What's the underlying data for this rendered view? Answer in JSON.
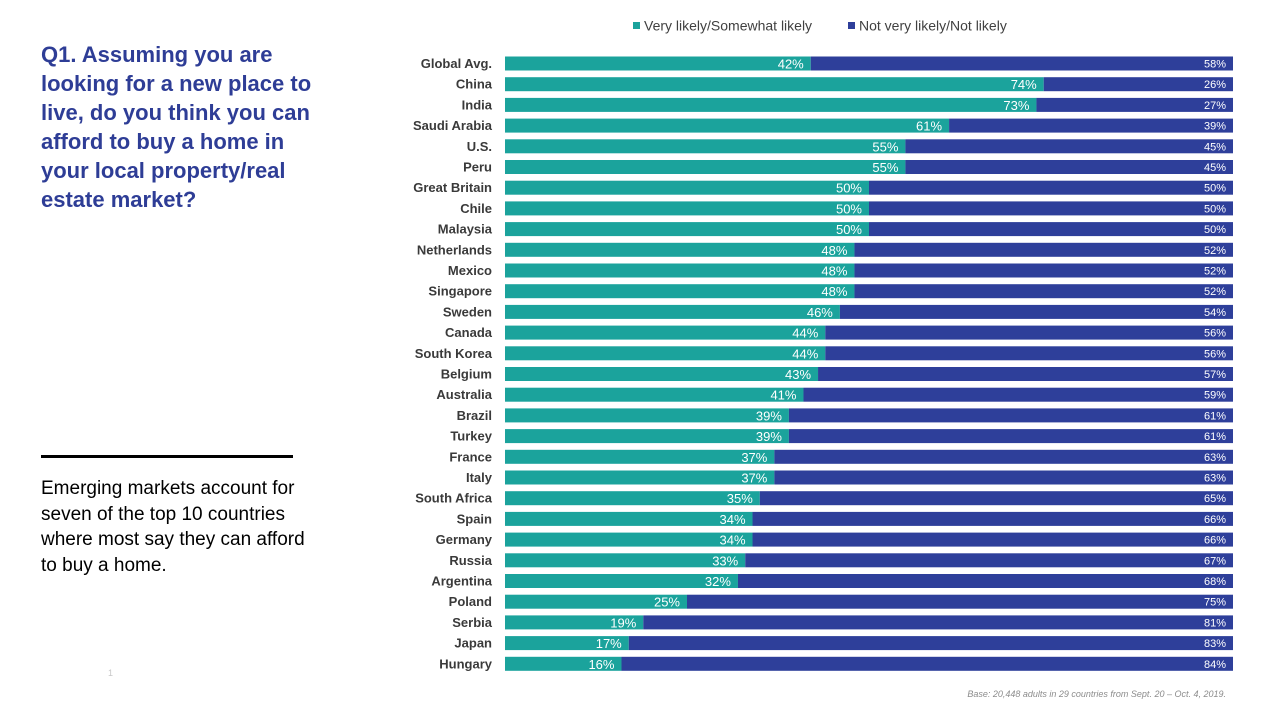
{
  "slide": {
    "question": "Q1. Assuming you are looking for a new place to live, do you think you can afford to buy a home in your local property/real estate market?",
    "note": "Emerging markets account for seven of the top 10 countries where most say they can afford to buy a home.",
    "page_number": "1",
    "footnote": "Base: 20,448 adults in 29 countries from Sept. 20 – Oct. 4, 2019."
  },
  "colors": {
    "question_text": "#2e3d96",
    "body_text": "#000000",
    "divider": "#000000"
  },
  "chart_data": {
    "type": "bar",
    "orientation": "horizontal",
    "stacked": true,
    "percent_stacked": true,
    "xlim": [
      0,
      100
    ],
    "grid": false,
    "legend_position": "top",
    "value_suffix": "%",
    "categories": [
      "Global Avg.",
      "China",
      "India",
      "Saudi Arabia",
      "U.S.",
      "Peru",
      "Great Britain",
      "Chile",
      "Malaysia",
      "Netherlands",
      "Mexico",
      "Singapore",
      "Sweden",
      "Canada",
      "South Korea",
      "Belgium",
      "Australia",
      "Brazil",
      "Turkey",
      "France",
      "Italy",
      "South Africa",
      "Spain",
      "Germany",
      "Russia",
      "Argentina",
      "Poland",
      "Serbia",
      "Japan",
      "Hungary"
    ],
    "series": [
      {
        "name": "Very likely/Somewhat likely",
        "color": "#1ba39c",
        "values": [
          42,
          74,
          73,
          61,
          55,
          55,
          50,
          50,
          50,
          48,
          48,
          48,
          46,
          44,
          44,
          43,
          41,
          39,
          39,
          37,
          37,
          35,
          34,
          34,
          33,
          32,
          25,
          19,
          17,
          16
        ]
      },
      {
        "name": "Not very likely/Not likely",
        "color": "#2e3f9a",
        "values": [
          58,
          26,
          27,
          39,
          45,
          45,
          50,
          50,
          50,
          52,
          52,
          52,
          54,
          56,
          56,
          57,
          59,
          61,
          61,
          63,
          63,
          65,
          66,
          66,
          67,
          68,
          75,
          81,
          83,
          84
        ]
      }
    ]
  }
}
